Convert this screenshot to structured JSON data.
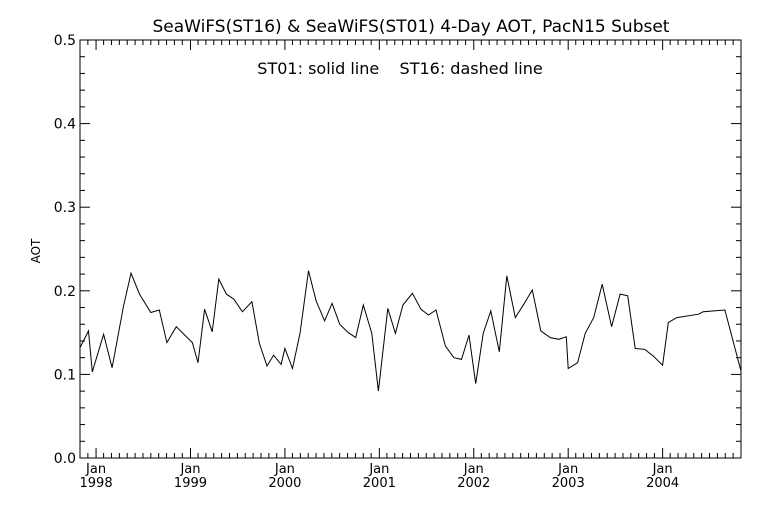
{
  "chart_data": {
    "type": "line",
    "title": "SeaWiFS(ST16) & SeaWiFS(ST01) 4-Day AOT, PacN15 Subset",
    "annotation": "ST01: solid line    ST16: dashed line",
    "ylabel": "AOT",
    "xlabel": "",
    "ylim": [
      0.0,
      0.5
    ],
    "xlim": [
      1997.83,
      2004.83
    ],
    "yticks": [
      "0.0",
      "0.1",
      "0.2",
      "0.3",
      "0.4",
      "0.5"
    ],
    "xticks": [
      {
        "month": "Jan",
        "year": "1998",
        "x": 1998.0
      },
      {
        "month": "Jan",
        "year": "1999",
        "x": 1999.0
      },
      {
        "month": "Jan",
        "year": "2000",
        "x": 2000.0
      },
      {
        "month": "Jan",
        "year": "2001",
        "x": 2001.0
      },
      {
        "month": "Jan",
        "year": "2002",
        "x": 2002.0
      },
      {
        "month": "Jan",
        "year": "2003",
        "x": 2003.0
      },
      {
        "month": "Jan",
        "year": "2004",
        "x": 2004.0
      }
    ],
    "series": [
      {
        "name": "ST01",
        "style": "solid",
        "color": "#000000",
        "points": [
          [
            1997.83,
            0.132
          ],
          [
            1997.92,
            0.152
          ],
          [
            1997.96,
            0.103
          ],
          [
            1998.08,
            0.148
          ],
          [
            1998.17,
            0.108
          ],
          [
            1998.29,
            0.181
          ],
          [
            1998.37,
            0.221
          ],
          [
            1998.46,
            0.196
          ],
          [
            1998.58,
            0.174
          ],
          [
            1998.67,
            0.177
          ],
          [
            1998.75,
            0.138
          ],
          [
            1998.85,
            0.157
          ],
          [
            1998.94,
            0.147
          ],
          [
            1999.02,
            0.138
          ],
          [
            1999.08,
            0.114
          ],
          [
            1999.15,
            0.178
          ],
          [
            1999.23,
            0.151
          ],
          [
            1999.3,
            0.214
          ],
          [
            1999.38,
            0.196
          ],
          [
            1999.46,
            0.19
          ],
          [
            1999.55,
            0.175
          ],
          [
            1999.65,
            0.187
          ],
          [
            1999.73,
            0.137
          ],
          [
            1999.81,
            0.11
          ],
          [
            1999.88,
            0.123
          ],
          [
            1999.96,
            0.112
          ],
          [
            2000.0,
            0.131
          ],
          [
            2000.08,
            0.107
          ],
          [
            2000.16,
            0.149
          ],
          [
            2000.25,
            0.224
          ],
          [
            2000.33,
            0.188
          ],
          [
            2000.42,
            0.164
          ],
          [
            2000.5,
            0.185
          ],
          [
            2000.58,
            0.16
          ],
          [
            2000.67,
            0.15
          ],
          [
            2000.75,
            0.144
          ],
          [
            2000.83,
            0.183
          ],
          [
            2000.92,
            0.149
          ],
          [
            2000.99,
            0.08
          ],
          [
            2001.09,
            0.179
          ],
          [
            2001.17,
            0.149
          ],
          [
            2001.25,
            0.183
          ],
          [
            2001.35,
            0.197
          ],
          [
            2001.44,
            0.178
          ],
          [
            2001.52,
            0.171
          ],
          [
            2001.6,
            0.177
          ],
          [
            2001.7,
            0.134
          ],
          [
            2001.79,
            0.12
          ],
          [
            2001.87,
            0.118
          ],
          [
            2001.95,
            0.147
          ],
          [
            2002.02,
            0.089
          ],
          [
            2002.1,
            0.149
          ],
          [
            2002.18,
            0.176
          ],
          [
            2002.27,
            0.127
          ],
          [
            2002.35,
            0.218
          ],
          [
            2002.44,
            0.168
          ],
          [
            2002.53,
            0.184
          ],
          [
            2002.62,
            0.201
          ],
          [
            2002.71,
            0.152
          ],
          [
            2002.81,
            0.144
          ],
          [
            2002.9,
            0.142
          ],
          [
            2002.98,
            0.145
          ],
          [
            2003.0,
            0.107
          ],
          [
            2003.1,
            0.114
          ],
          [
            2003.18,
            0.149
          ],
          [
            2003.27,
            0.168
          ],
          [
            2003.36,
            0.208
          ],
          [
            2003.46,
            0.157
          ],
          [
            2003.55,
            0.196
          ],
          [
            2003.63,
            0.194
          ],
          [
            2003.71,
            0.131
          ],
          [
            2003.81,
            0.13
          ],
          [
            2003.9,
            0.122
          ],
          [
            2004.0,
            0.111
          ],
          [
            2004.06,
            0.162
          ],
          [
            2004.15,
            0.168
          ],
          [
            2004.38,
            0.172
          ],
          [
            2004.43,
            0.175
          ],
          [
            2004.66,
            0.177
          ],
          [
            2004.83,
            0.104
          ]
        ]
      }
    ]
  }
}
